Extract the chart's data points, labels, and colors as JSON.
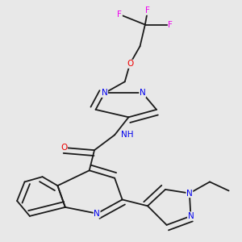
{
  "background_color": "#e8e8e8",
  "bond_color": "#1a1a1a",
  "atom_colors": {
    "N": "#0000ee",
    "O": "#ee0000",
    "F": "#ee00ee",
    "C": "#1a1a1a",
    "H": "#008080"
  },
  "figsize": [
    3.0,
    3.0
  ],
  "dpi": 100
}
